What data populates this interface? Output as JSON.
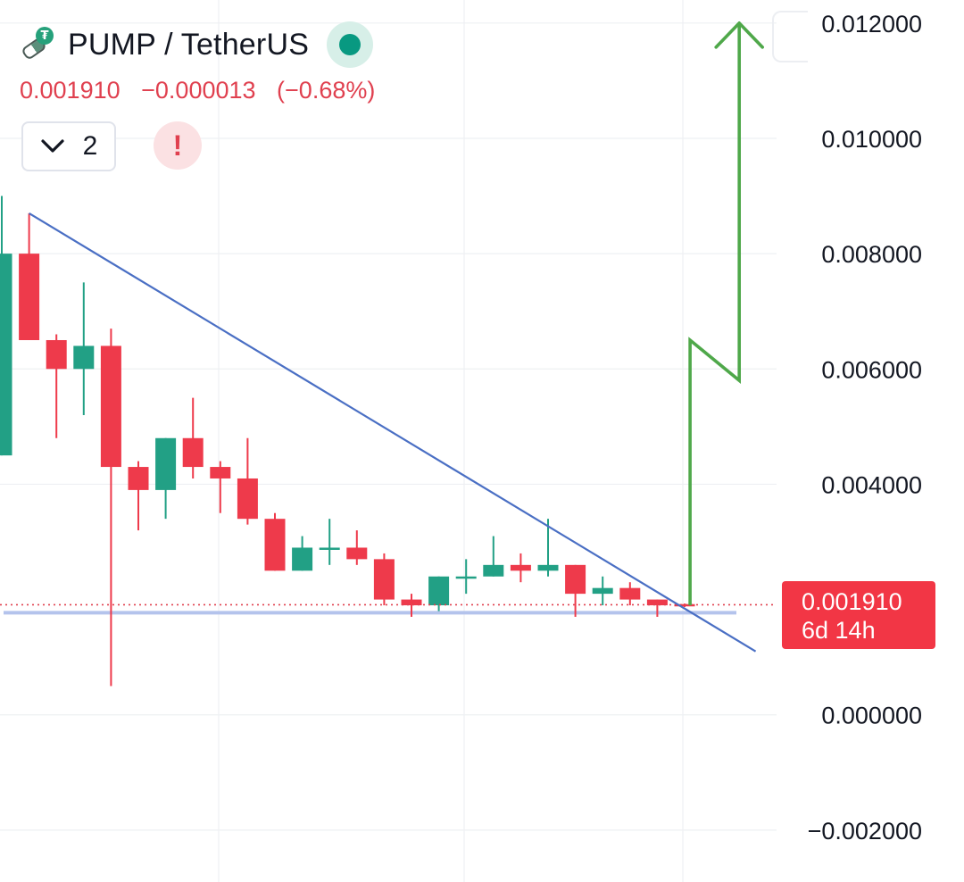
{
  "header": {
    "symbol": "PUMP / TetherUS",
    "logo_icon": "pump-tether-logo-icon",
    "status_color": "#089981"
  },
  "price": {
    "last": "0.001910",
    "change": "−0.000013",
    "change_pct": "(−0.68%)",
    "color": "#e0404f"
  },
  "indicators": {
    "count_label": "2",
    "collapse_icon": "chevron-down-icon",
    "warning_icon": "exclamation-icon",
    "warning_label": "!"
  },
  "last_price_tag": {
    "price": "0.001910",
    "countdown": "6d 14h",
    "color": "#f23645"
  },
  "chart_data": {
    "type": "candlestick",
    "ylim": [
      -0.0029,
      0.0124
    ],
    "y_ticks": [
      {
        "value": 0.012,
        "label": "0.012000"
      },
      {
        "value": 0.01,
        "label": "0.010000"
      },
      {
        "value": 0.008,
        "label": "0.008000"
      },
      {
        "value": 0.006,
        "label": "0.006000"
      },
      {
        "value": 0.004,
        "label": "0.004000"
      },
      {
        "value": 0.0,
        "label": "0.000000"
      },
      {
        "value": -0.002,
        "label": "−0.002000"
      }
    ],
    "colors": {
      "up": "#22a085",
      "down": "#ee3a4b",
      "trendline": "#4a6fc4",
      "support": "#b4c3ec",
      "projection": "#4fa84a"
    },
    "candles": [
      {
        "open": 0.0045,
        "high": 0.009,
        "low": 0.0045,
        "close": 0.008
      },
      {
        "open": 0.008,
        "high": 0.0087,
        "low": 0.0065,
        "close": 0.0065
      },
      {
        "open": 0.0065,
        "high": 0.0066,
        "low": 0.0048,
        "close": 0.006
      },
      {
        "open": 0.006,
        "high": 0.0075,
        "low": 0.0052,
        "close": 0.0064
      },
      {
        "open": 0.0064,
        "high": 0.0067,
        "low": 0.0005,
        "close": 0.0043
      },
      {
        "open": 0.0043,
        "high": 0.0044,
        "low": 0.0032,
        "close": 0.0039
      },
      {
        "open": 0.0039,
        "high": 0.0048,
        "low": 0.0034,
        "close": 0.0048
      },
      {
        "open": 0.0048,
        "high": 0.0055,
        "low": 0.0041,
        "close": 0.0043
      },
      {
        "open": 0.0043,
        "high": 0.0044,
        "low": 0.0035,
        "close": 0.0041
      },
      {
        "open": 0.0041,
        "high": 0.0048,
        "low": 0.0033,
        "close": 0.0034
      },
      {
        "open": 0.0034,
        "high": 0.0035,
        "low": 0.0025,
        "close": 0.0025
      },
      {
        "open": 0.0025,
        "high": 0.0031,
        "low": 0.0025,
        "close": 0.0029
      },
      {
        "open": 0.0029,
        "high": 0.0034,
        "low": 0.0026,
        "close": 0.0029
      },
      {
        "open": 0.0029,
        "high": 0.0032,
        "low": 0.0026,
        "close": 0.0027
      },
      {
        "open": 0.0027,
        "high": 0.0028,
        "low": 0.0019,
        "close": 0.002
      },
      {
        "open": 0.002,
        "high": 0.0021,
        "low": 0.0017,
        "close": 0.0019
      },
      {
        "open": 0.0019,
        "high": 0.0024,
        "low": 0.0018,
        "close": 0.0024
      },
      {
        "open": 0.0024,
        "high": 0.0027,
        "low": 0.0021,
        "close": 0.0024
      },
      {
        "open": 0.0024,
        "high": 0.0031,
        "low": 0.0024,
        "close": 0.0026
      },
      {
        "open": 0.0026,
        "high": 0.0028,
        "low": 0.0023,
        "close": 0.0025
      },
      {
        "open": 0.0025,
        "high": 0.0034,
        "low": 0.0024,
        "close": 0.0026
      },
      {
        "open": 0.0026,
        "high": 0.0026,
        "low": 0.0017,
        "close": 0.0021
      },
      {
        "open": 0.0021,
        "high": 0.0024,
        "low": 0.0019,
        "close": 0.0022
      },
      {
        "open": 0.0022,
        "high": 0.0023,
        "low": 0.0019,
        "close": 0.002
      },
      {
        "open": 0.002,
        "high": 0.002,
        "low": 0.0017,
        "close": 0.0019
      },
      {
        "open": 0.00192,
        "high": 0.00193,
        "low": 0.00187,
        "close": 0.00191
      }
    ],
    "trendline": {
      "from": {
        "index": 1,
        "value": 0.0087
      },
      "to": {
        "index": 27.6,
        "value": 0.0011
      }
    },
    "support_level": 0.00177,
    "last_price_level": 0.00191,
    "projection_path": [
      {
        "index": 25.2,
        "value": 0.0019
      },
      {
        "index": 25.2,
        "value": 0.0065
      },
      {
        "index": 27.0,
        "value": 0.0058
      },
      {
        "index": 27.0,
        "value": 0.012
      }
    ]
  }
}
